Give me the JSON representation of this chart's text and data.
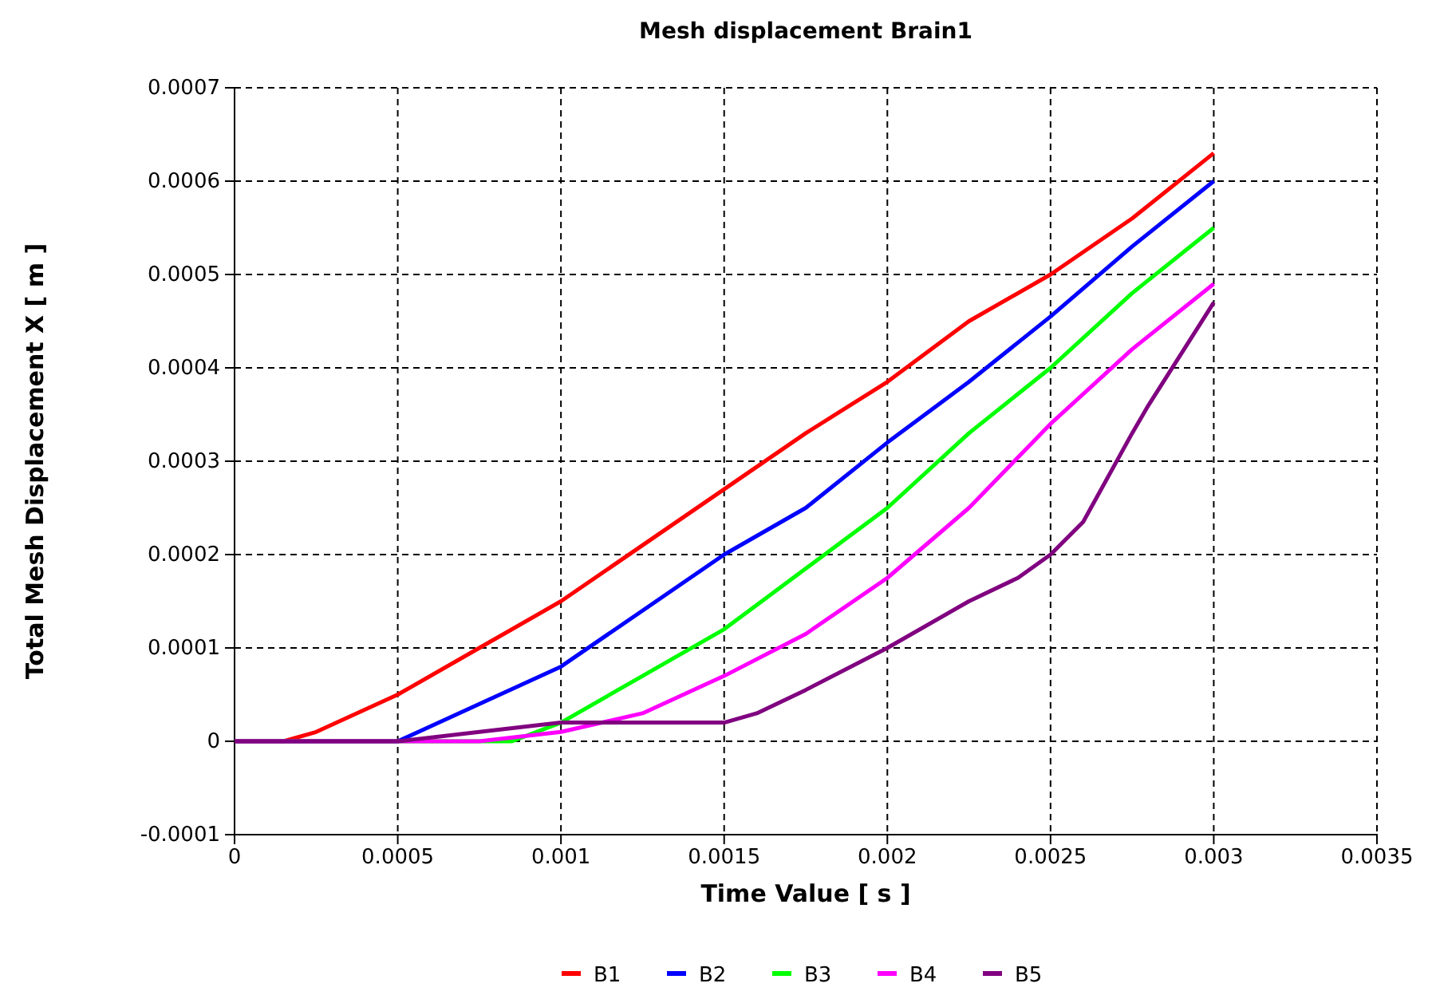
{
  "chart_data": {
    "type": "line",
    "title": "Mesh displacement Brain1",
    "xlabel": "Time Value [ s ]",
    "ylabel": "Total Mesh Displacement X [ m ]",
    "xlim": [
      0,
      0.0035
    ],
    "ylim": [
      -0.0001,
      0.0007
    ],
    "xticks": [
      0,
      0.0005,
      0.001,
      0.0015,
      0.002,
      0.0025,
      0.003,
      0.0035
    ],
    "yticks": [
      -0.0001,
      0,
      0.0001,
      0.0002,
      0.0003,
      0.0004,
      0.0005,
      0.0006,
      0.0007
    ],
    "grid": true,
    "legend": "bottom",
    "line_style": "solid",
    "marker": "none",
    "series": [
      {
        "name": "B1",
        "color": "#ff0000",
        "x": [
          0,
          0.00015,
          0.00025,
          0.0005,
          0.00075,
          0.001,
          0.0015,
          0.00175,
          0.002,
          0.00225,
          0.0025,
          0.00275,
          0.003
        ],
        "values": [
          0,
          0,
          1e-05,
          5e-05,
          0.0001,
          0.00015,
          0.00027,
          0.00033,
          0.000385,
          0.00045,
          0.0005,
          0.00056,
          0.00063
        ]
      },
      {
        "name": "B2",
        "color": "#0000ff",
        "x": [
          0,
          0.0005,
          0.00075,
          0.001,
          0.00125,
          0.0015,
          0.00175,
          0.002,
          0.00225,
          0.0025,
          0.00275,
          0.003
        ],
        "values": [
          0,
          0,
          4e-05,
          8e-05,
          0.00014,
          0.0002,
          0.00025,
          0.00032,
          0.000385,
          0.000455,
          0.00053,
          0.0006
        ]
      },
      {
        "name": "B3",
        "color": "#00ff00",
        "x": [
          0,
          0.0005,
          0.00085,
          0.001,
          0.00125,
          0.0015,
          0.00175,
          0.002,
          0.00225,
          0.0025,
          0.00275,
          0.003
        ],
        "values": [
          0,
          0,
          0,
          2e-05,
          7e-05,
          0.00012,
          0.000185,
          0.00025,
          0.00033,
          0.0004,
          0.00048,
          0.00055
        ]
      },
      {
        "name": "B4",
        "color": "#ff00ff",
        "x": [
          0,
          0.0005,
          0.00075,
          0.001,
          0.00125,
          0.0015,
          0.00175,
          0.002,
          0.00225,
          0.0025,
          0.00275,
          0.003
        ],
        "values": [
          0,
          0,
          0,
          1e-05,
          3e-05,
          7e-05,
          0.000115,
          0.000175,
          0.00025,
          0.00034,
          0.00042,
          0.00049
        ]
      },
      {
        "name": "B5",
        "color": "#800080",
        "x": [
          0,
          0.0005,
          0.00075,
          0.001,
          0.00125,
          0.0015,
          0.0016,
          0.00175,
          0.002,
          0.00225,
          0.0024,
          0.0025,
          0.0026,
          0.00275,
          0.0028,
          0.003
        ],
        "values": [
          0,
          0,
          1e-05,
          2e-05,
          2e-05,
          2e-05,
          3e-05,
          5.5e-05,
          0.0001,
          0.00015,
          0.000175,
          0.0002,
          0.000235,
          0.00033,
          0.00036,
          0.00047
        ]
      }
    ]
  }
}
